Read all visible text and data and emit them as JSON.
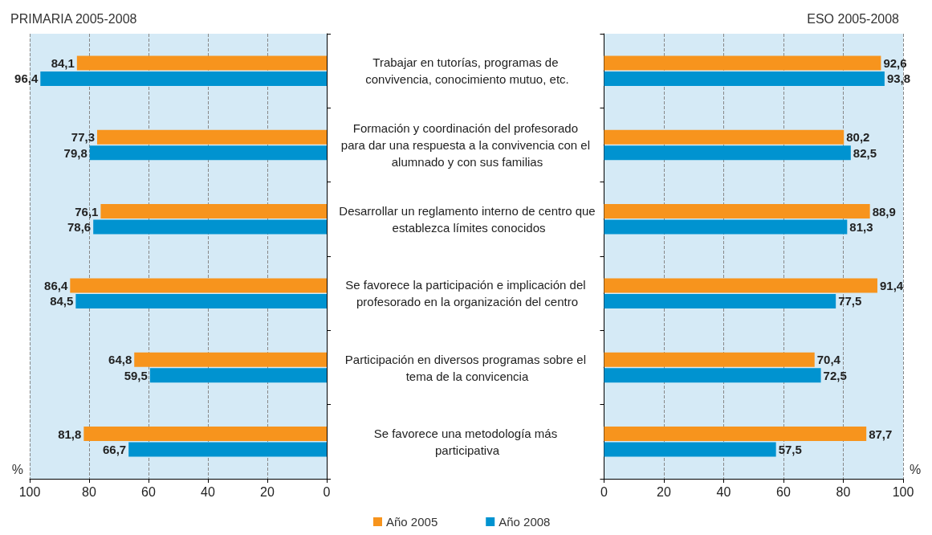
{
  "chart_data": [
    {
      "type": "bar",
      "orientation": "horizontal",
      "title": "PRIMARIA 2005-2008",
      "xlabel": "%",
      "categories": [
        "Trabajar en tutorías, programas de convivencia, conocimiento mutuo, etc.",
        "Formación y coordinación del profesorado para dar una respuesta a la convivencia con el alumnado y con sus familias",
        "Desarrollar un reglamento interno de centro que establezca límites conocidos",
        "Se favorece la participación e implicación del profesorado en la organización del centro",
        "Participación en diversos programas sobre el tema de la convicencia",
        "Se favorece una metodología más participativa"
      ],
      "series": [
        {
          "name": "Año 2005",
          "color": "#f7941d",
          "values": [
            84.1,
            77.3,
            76.1,
            86.4,
            64.8,
            81.8
          ],
          "value_labels": [
            "84,1",
            "77,3",
            "76,1",
            "86,4",
            "64,8",
            "81,8"
          ]
        },
        {
          "name": "Año 2008",
          "color": "#0093d0",
          "values": [
            96.4,
            79.8,
            78.6,
            84.5,
            59.5,
            66.7
          ],
          "value_labels": [
            "96,4",
            "79,8",
            "78,6",
            "84,5",
            "59,5",
            "66,7"
          ]
        }
      ],
      "xlim": [
        100,
        0
      ],
      "xticks": [
        100,
        80,
        60,
        40,
        20,
        0
      ],
      "grid": "x",
      "legend": "bottom"
    },
    {
      "type": "bar",
      "orientation": "horizontal",
      "title": "ESO 2005-2008",
      "xlabel": "%",
      "categories": [
        null,
        null,
        null,
        null,
        null,
        null
      ],
      "series": [
        {
          "color": "#f7941d",
          "values": [
            92.6,
            80.2,
            88.9,
            91.4,
            70.4,
            87.7
          ],
          "value_labels": [
            "92,6",
            "80,2",
            "88,9",
            "91,4",
            "70,4",
            "87,7"
          ]
        },
        {
          "color": "#0093d0",
          "values": [
            93.8,
            82.5,
            81.3,
            77.5,
            72.5,
            57.5
          ],
          "value_labels": [
            "93,8",
            "82,5",
            "81,3",
            "77,5",
            "72,5",
            "57,5"
          ]
        }
      ],
      "xlim": [
        0,
        100
      ],
      "xticks": [
        0,
        20,
        40,
        60,
        80,
        100
      ],
      "grid": "x",
      "tick_labels": "x"
    }
  ]
}
